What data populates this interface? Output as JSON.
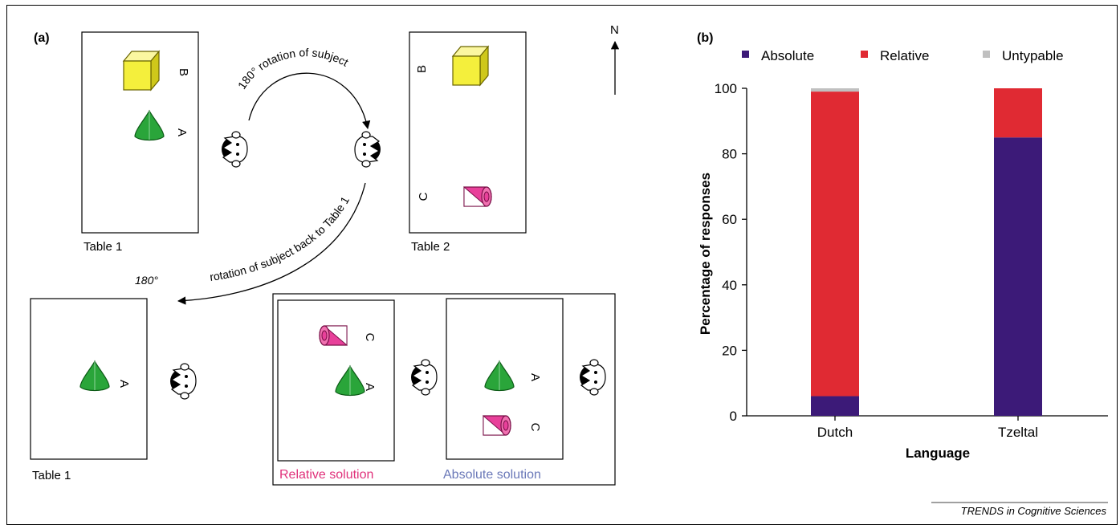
{
  "panel_a": {
    "label": "(a)",
    "north": "N",
    "table1_top_label": "Table 1",
    "table2_label": "Table 2",
    "table1_bottom_label": "Table 1",
    "obj_a": "A",
    "obj_b": "B",
    "obj_c": "C",
    "arrow1_text": "180° rotation of subject",
    "arrow2_degree": "180°",
    "arrow2_text": "rotation of subject back to Table 1",
    "relative_solution": "Relative solution",
    "absolute_solution": "Absolute solution",
    "colors": {
      "relative": "#e0307a",
      "absolute": "#6a78b8",
      "cube": "#f4ef3c",
      "cone": "#2aa53a",
      "cylinder": "#e8409a"
    }
  },
  "panel_b": {
    "label": "(b)",
    "source": "TRENDS in Cognitive Sciences",
    "chart_data": {
      "type": "bar",
      "stacked": true,
      "categories": [
        "Dutch",
        "Tzeltal"
      ],
      "series": [
        {
          "name": "Absolute",
          "color": "#3c1a78",
          "values": [
            6,
            85
          ]
        },
        {
          "name": "Relative",
          "color": "#e02a33",
          "values": [
            93,
            15
          ]
        },
        {
          "name": "Untypable",
          "color": "#c0c0c0",
          "values": [
            1,
            0
          ]
        }
      ],
      "xlabel": "Language",
      "ylabel": "Percentage of responses",
      "ylim": [
        0,
        100
      ],
      "yticks": [
        "0",
        "20",
        "40",
        "60",
        "80",
        "100"
      ],
      "legend_position": "top"
    }
  }
}
